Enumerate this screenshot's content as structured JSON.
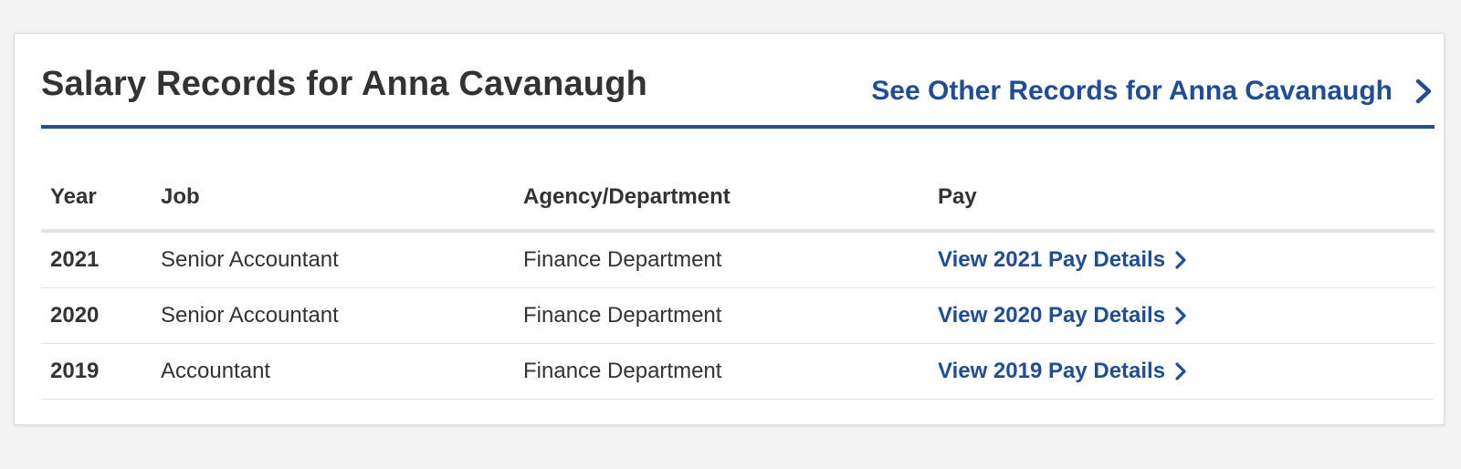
{
  "header": {
    "title": "Salary Records for Anna Cavanaugh",
    "other_records_label": "See Other Records for Anna Cavanaugh"
  },
  "table": {
    "columns": [
      "Year",
      "Job",
      "Agency/Department",
      "Pay"
    ],
    "rows": [
      {
        "year": "2021",
        "job": "Senior Accountant",
        "agency": "Finance Department",
        "pay_link": "View 2021 Pay Details"
      },
      {
        "year": "2020",
        "job": "Senior Accountant",
        "agency": "Finance Department",
        "pay_link": "View 2020 Pay Details"
      },
      {
        "year": "2019",
        "job": "Accountant",
        "agency": "Finance Department",
        "pay_link": "View 2019 Pay Details"
      }
    ]
  },
  "icons": {
    "link_chevron": "chevron-right-icon"
  },
  "colors": {
    "accent": "#1f4e96",
    "text": "#333333",
    "page_background": "#f4f4f4",
    "card_background": "#ffffff",
    "row_divider": "#e3e3e3"
  }
}
